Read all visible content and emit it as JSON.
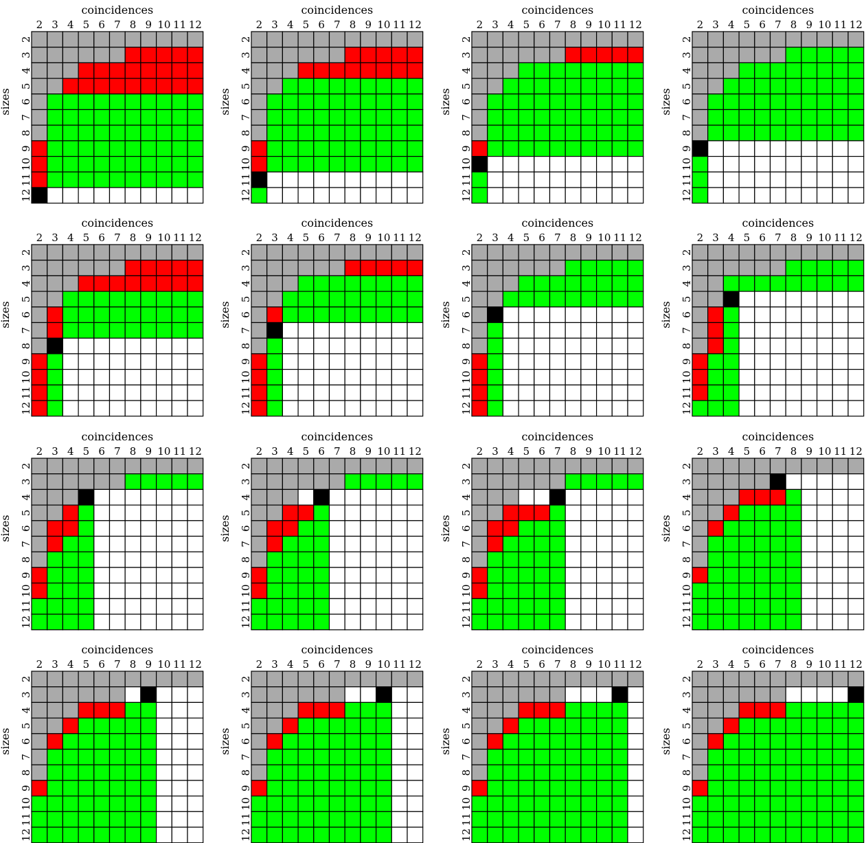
{
  "chart_data": {
    "type": "heatmap",
    "xlabel": "coincidences",
    "ylabel": "sizes",
    "x_categories": [
      "2",
      "3",
      "4",
      "5",
      "6",
      "7",
      "8",
      "9",
      "10",
      "11",
      "12"
    ],
    "y_categories": [
      "2",
      "3",
      "4",
      "5",
      "6",
      "7",
      "8",
      "9",
      "10",
      "11",
      "12"
    ],
    "legend": {
      "G": {
        "label": "",
        "color": "#aaaaaa"
      },
      "R": {
        "label": "",
        "color": "#ff0000"
      },
      "V": {
        "label": "",
        "color": "#00ff00"
      },
      "K": {
        "label": "",
        "color": "#000000"
      },
      "W": {
        "label": "",
        "color": "#ffffff"
      }
    },
    "panels": [
      {
        "rows": [
          "GGGGGGGGGGG",
          "GGGGGGRRRRR",
          "GGGRRRRRRRR",
          "GGRRRRRRRRR",
          "GVVVVVVVVVV",
          "GVVVVVVVVVV",
          "GVVVVVVVVVV",
          "RVVVVVVVVVV",
          "RVVVVVVVVVV",
          "RVVVVVVVVVV",
          "KWWWWWWWWWW"
        ]
      },
      {
        "rows": [
          "GGGGGGGGGGG",
          "GGGGGGRRRRR",
          "GGGRRRRRRRR",
          "GGVVVVVVVVV",
          "GVVVVVVVVVV",
          "GVVVVVVVVVV",
          "GVVVVVVVVVV",
          "RVVVVVVVVVV",
          "RVVVVVVVVVV",
          "KWWWWWWWWWW",
          "VWWWWWWWWWW"
        ]
      },
      {
        "rows": [
          "GGGGGGGGGGG",
          "GGGGGGRRRRR",
          "GGGVVVVVVVV",
          "GGVVVVVVVVV",
          "GVVVVVVVVVV",
          "GVVVVVVVVVV",
          "GVVVVVVVVVV",
          "RVVVVVVVVVV",
          "KWWWWWWWWWW",
          "VWWWWWWWWWW",
          "VWWWWWWWWWW"
        ]
      },
      {
        "rows": [
          "GGGGGGGGGGG",
          "GGGGGGVVVVV",
          "GGGVVVVVVVV",
          "GGVVVVVVVVV",
          "GVVVVVVVVVV",
          "GVVVVVVVVVV",
          "GVVVVVVVVVV",
          "KWWWWWWWWWW",
          "VWWWWWWWWWW",
          "VWWWWWWWWWW",
          "VWWWWWWWWWW"
        ]
      },
      {
        "rows": [
          "GGGGGGGGGGG",
          "GGGGGGRRRRR",
          "GGGRRRRRRRR",
          "GGVVVVVVVVV",
          "GRVVVVVVVVV",
          "GRVVVVVVVVV",
          "GKWWWWWWWWW",
          "RVWWWWWWWWW",
          "RVWWWWWWWWW",
          "RVWWWWWWWWW",
          "RVWWWWWWWWW"
        ]
      },
      {
        "rows": [
          "GGGGGGGGGGG",
          "GGGGGGRRRRR",
          "GGGVVVVVVVV",
          "GGVVVVVVVVV",
          "GRVVVVVVVVV",
          "GKWWWWWWWWW",
          "GVWWWWWWWWW",
          "RVWWWWWWWWW",
          "RVWWWWWWWWW",
          "RVWWWWWWWWW",
          "RVWWWWWWWWW"
        ]
      },
      {
        "rows": [
          "GGGGGGGGGGG",
          "GGGGGGVVVVV",
          "GGGVVVVVVVV",
          "GGVVVVVVVVV",
          "GKWWWWWWWWW",
          "GVWWWWWWWWW",
          "GVWWWWWWWWW",
          "RVWWWWWWWWW",
          "RVWWWWWWWWW",
          "RVWWWWWWWWW",
          "RVWWWWWWWWW"
        ]
      },
      {
        "rows": [
          "GGGGGGGGGGG",
          "GGGGGGVVVVV",
          "GGVVVVVVVVV",
          "GGKWWWWWWWW",
          "GRVWWWWWWWW",
          "GRVWWWWWWWW",
          "GRVWWWWWWWW",
          "RVVWWWWWWWW",
          "RVVWWWWWWWW",
          "RVVWWWWWWWW",
          "VVVWWWWWWWW"
        ]
      },
      {
        "rows": [
          "GGGGGGGGGGG",
          "GGGGGGVVVVV",
          "GGGKWWWWWWW",
          "GGRVWWWWWWW",
          "GRRVWWWWWWW",
          "GRVVWWWWWWW",
          "GVVVWWWWWWW",
          "RVVVWWWWWWW",
          "RVVVWWWWWWW",
          "VVVVWWWWWWW",
          "VVVVWWWWWWW"
        ]
      },
      {
        "rows": [
          "GGGGGGGGGGG",
          "GGGGGGVVVVV",
          "GGGWKWWWWWW",
          "GGRRVWWWWWW",
          "GRRVVWWWWWW",
          "GRVVVWWWWWW",
          "GVVVVWWWWWW",
          "RVVVVWWWWWW",
          "RVVVVWWWWWW",
          "VVVVVWWWWWW",
          "VVVVVWWWWWW"
        ]
      },
      {
        "rows": [
          "GGGGGGGGGGG",
          "GGGGGGVVVVV",
          "GGGWWKWWWWW",
          "GGRRRVWWWWW",
          "GRRVVVWWWWW",
          "GRVVVVWWWWW",
          "GVVVVVWWWWW",
          "RVVVVVWWWWW",
          "RVVVVVWWWWW",
          "VVVVVVWWWWW",
          "VVVVVVWWWWW"
        ]
      },
      {
        "rows": [
          "GGGGGGGGGGG",
          "GGGGGKWWWWW",
          "GGGRRRVWWWW",
          "GGRVVVVWWWW",
          "GRVVVVVWWWW",
          "GVVVVVVWWWW",
          "GVVVVVVWWWW",
          "RVVVVVVWWWW",
          "VVVVVVVWWWW",
          "VVVVVVVWWWW",
          "VVVVVVVWWWW"
        ]
      },
      {
        "rows": [
          "GGGGGGGGGGG",
          "GGGGGGWKWWW",
          "GGGRRRVVWWW",
          "GGRVVVVVWWW",
          "GRVVVVVVWWW",
          "GVVVVVVVWWW",
          "GVVVVVVVWWW",
          "RVVVVVVVWWW",
          "VVVVVVVVWWW",
          "VVVVVVVVWWW",
          "VVVVVVVVWWW"
        ]
      },
      {
        "rows": [
          "GGGGGGGGGGG",
          "GGGGGGWWKWW",
          "GGGRRRVVVWW",
          "GGRVVVVVVWW",
          "GRVVVVVVVWW",
          "GVVVVVVVVWW",
          "GVVVVVVVVWW",
          "RVVVVVVVVWW",
          "VVVVVVVVVWW",
          "VVVVVVVVVWW",
          "VVVVVVVVVWW"
        ]
      },
      {
        "rows": [
          "GGGGGGGGGGG",
          "GGGGGGWWWKW",
          "GGGRRRVVVVW",
          "GGRVVVVVVVW",
          "GRVVVVVVVVW",
          "GVVVVVVVVVW",
          "GVVVVVVVVVW",
          "RVVVVVVVVVW",
          "VVVVVVVVVVW",
          "VVVVVVVVVVW",
          "VVVVVVVVVVW"
        ]
      },
      {
        "rows": [
          "GGGGGGGGGGG",
          "GGGGGGWWWWK",
          "GGGRRRVVVVV",
          "GGRVVVVVVVV",
          "GRVVVVVVVVV",
          "GVVVVVVVVVV",
          "GVVVVVVVVVV",
          "RVVVVVVVVVV",
          "VVVVVVVVVVV",
          "VVVVVVVVVVV",
          "VVVVVVVVVVV"
        ]
      }
    ]
  }
}
